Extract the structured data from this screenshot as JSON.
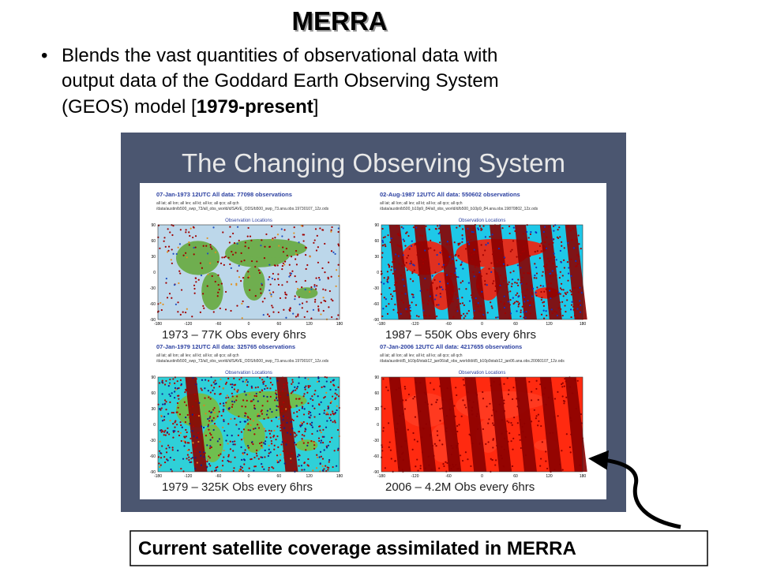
{
  "title": "MERRA",
  "bullet": {
    "lines": [
      "Blends the vast quantities of observational data with",
      "output data of the Goddard Earth Observing System"
    ],
    "last": [
      "(GEOS) model [",
      "1979-present",
      "]"
    ]
  },
  "figure": {
    "title": "The Changing Observing System",
    "map_subtitle": "Observation Locations",
    "map_xticks": [
      -180,
      -120,
      -60,
      0,
      60,
      120,
      180
    ],
    "map_yticks": [
      90,
      60,
      30,
      0,
      -30,
      -60,
      -90
    ],
    "panels": [
      {
        "header": "07-Jan-1973 12UTC All data: 77098 observations",
        "filter": "all lat; all lon; all lev; all kt; all kx; all qcx; all qch",
        "file": "/data/austin/b500_swp_73/all_obs_world/d/SAVE_ODS/b500_swp_73.ana.obs.19730107_12z.ods",
        "caption": "1973 – 77K Obs every 6hrs"
      },
      {
        "header": "02-Aug-1987 12UTC All data: 550602 observations",
        "filter": "all lat; all lon; all lev; all kt; all kx; all qcx; all qch",
        "file": "/data/austin/b500_b10p9_84/all_obs_world/d/b500_b10p9_84.ana.obs.19870802_12z.ods",
        "caption": "1987 – 550K Obs  every 6hrs"
      },
      {
        "header": "07-Jan-1979 12UTC All data: 325765 observations",
        "filter": "all lat; all lon; all lev; all kt; all kx; all qcx; all qch",
        "file": "/data/austin/b500_swp_73/all_obs_world/d/SAVE_ODS/b500_swp_73.ana.obs.19790107_12z.ods",
        "caption": "1979 – 325K Obs  every 6hrs"
      },
      {
        "header": "07-Jan-2006 12UTC All data: 4217655 observations",
        "filter": "all lat; all lon; all lev; all kt; all kx; all qcx; all qch",
        "file": "/data/austin/d5_b10p9/stab12_jan06/all_obs_world/d/d5_b10p9stab12_jan06.ana.obs.20060107_12z.ods",
        "caption": "2006 – 4.2M Obs  every 6hrs"
      }
    ]
  },
  "footer": "Current satellite coverage assimilated in MERRA"
}
